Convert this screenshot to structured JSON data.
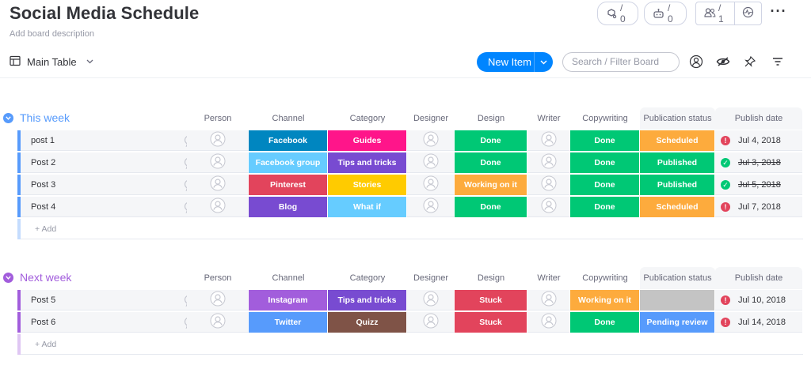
{
  "board": {
    "title": "Social Media Schedule",
    "description": "Add board description"
  },
  "top_actions": {
    "integrations_count": "/ 0",
    "automations_count": "/ 0",
    "members_count": "/ 1"
  },
  "toolbar": {
    "view_label": "Main Table",
    "new_item_label": "New Item",
    "search_placeholder": "Search / Filter Board"
  },
  "columns": [
    "Person",
    "Channel",
    "Category",
    "Designer",
    "Design",
    "Writer",
    "Copywriting",
    "Publication status",
    "Publish date"
  ],
  "colors": {
    "accent": "#0085ff",
    "this_week": "#579bfc",
    "next_week": "#a25ddc",
    "done": "#00c875",
    "stuck": "#e2445c",
    "working": "#fdab3d",
    "published": "#00c875",
    "scheduled": "#fdab3d",
    "pending": "#579bfc",
    "empty_status": "#c4c4c4"
  },
  "groups": [
    {
      "title": "This week",
      "color": "#579bfc",
      "add_label": "+ Add",
      "rows": [
        {
          "name": "post 1",
          "channel": {
            "label": "Facebook",
            "color": "#0086c0"
          },
          "category": {
            "label": "Guides",
            "color": "#ff158a"
          },
          "design": {
            "label": "Done",
            "color": "#00c875"
          },
          "copywriting": {
            "label": "Done",
            "color": "#00c875"
          },
          "status": {
            "label": "Scheduled",
            "color": "#fdab3d"
          },
          "date": "Jul 4, 2018",
          "date_state": "alert",
          "strike": false
        },
        {
          "name": "Post 2",
          "channel": {
            "label": "Facebook group",
            "color": "#66ccff"
          },
          "category": {
            "label": "Tips and tricks",
            "color": "#784bd1"
          },
          "design": {
            "label": "Done",
            "color": "#00c875"
          },
          "copywriting": {
            "label": "Done",
            "color": "#00c875"
          },
          "status": {
            "label": "Published",
            "color": "#00c875"
          },
          "date": "Jul 3, 2018",
          "date_state": "done",
          "strike": true
        },
        {
          "name": "Post 3",
          "channel": {
            "label": "Pinterest",
            "color": "#e2445c"
          },
          "category": {
            "label": "Stories",
            "color": "#ffcb00"
          },
          "design": {
            "label": "Working on it",
            "color": "#fdab3d"
          },
          "copywriting": {
            "label": "Done",
            "color": "#00c875"
          },
          "status": {
            "label": "Published",
            "color": "#00c875"
          },
          "date": "Jul 5, 2018",
          "date_state": "done",
          "strike": true
        },
        {
          "name": "Post 4",
          "channel": {
            "label": "Blog",
            "color": "#784bd1"
          },
          "category": {
            "label": "What if",
            "color": "#66ccff"
          },
          "design": {
            "label": "Done",
            "color": "#00c875"
          },
          "copywriting": {
            "label": "Done",
            "color": "#00c875"
          },
          "status": {
            "label": "Scheduled",
            "color": "#fdab3d"
          },
          "date": "Jul 7, 2018",
          "date_state": "alert",
          "strike": false
        }
      ]
    },
    {
      "title": "Next week",
      "color": "#a25ddc",
      "add_label": "+ Add",
      "rows": [
        {
          "name": "Post 5",
          "channel": {
            "label": "Instagram",
            "color": "#a25ddc"
          },
          "category": {
            "label": "Tips and tricks",
            "color": "#784bd1"
          },
          "design": {
            "label": "Stuck",
            "color": "#e2445c"
          },
          "copywriting": {
            "label": "Working on it",
            "color": "#fdab3d"
          },
          "status": {
            "label": "",
            "color": "#c4c4c4"
          },
          "date": "Jul 10, 2018",
          "date_state": "alert",
          "strike": false
        },
        {
          "name": "Post 6",
          "channel": {
            "label": "Twitter",
            "color": "#579bfc"
          },
          "category": {
            "label": "Quizz",
            "color": "#7f5347"
          },
          "design": {
            "label": "Stuck",
            "color": "#e2445c"
          },
          "copywriting": {
            "label": "Done",
            "color": "#00c875"
          },
          "status": {
            "label": "Pending review",
            "color": "#579bfc"
          },
          "date": "Jul 14, 2018",
          "date_state": "alert",
          "strike": false
        }
      ]
    }
  ]
}
